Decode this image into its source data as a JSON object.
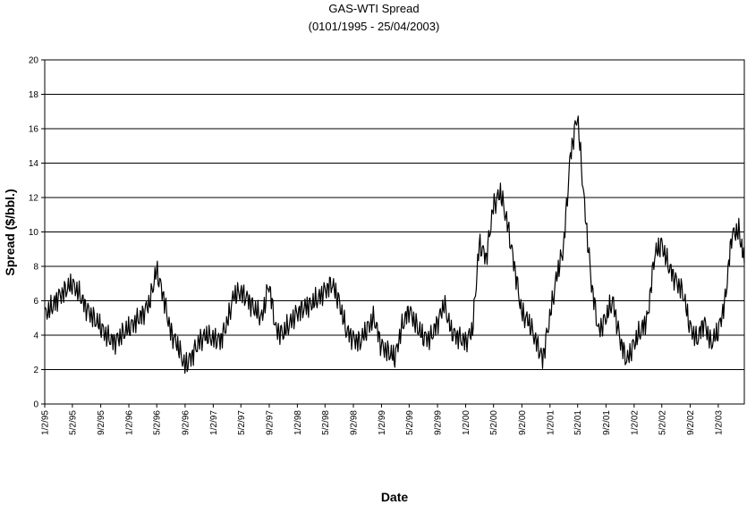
{
  "chart_data": {
    "type": "line",
    "title": "GAS-WTI Spread",
    "subtitle": "(0101/1995 - 25/04/2003)",
    "xlabel": "Date",
    "ylabel": "Spread ($/bbl.)",
    "ylim": [
      0,
      20
    ],
    "yticks": [
      "0",
      "2",
      "4",
      "6",
      "8",
      "10",
      "12",
      "14",
      "16",
      "18",
      "20"
    ],
    "xlim": [
      "1995-01-02",
      "2003-04-25"
    ],
    "xtick_labels": [
      "1/2/95",
      "5/2/95",
      "9/2/95",
      "1/2/96",
      "5/2/96",
      "9/2/96",
      "1/2/97",
      "5/2/97",
      "9/2/97",
      "1/2/98",
      "5/2/98",
      "9/2/98",
      "1/2/99",
      "5/2/99",
      "9/2/99",
      "1/2/00",
      "5/2/00",
      "9/2/00",
      "1/2/01",
      "5/2/01",
      "9/2/01",
      "1/2/02",
      "5/2/02",
      "9/2/02",
      "1/2/03"
    ],
    "xtick_dates": [
      "1995-01-02",
      "1995-05-02",
      "1995-09-02",
      "1996-01-02",
      "1996-05-02",
      "1996-09-02",
      "1997-01-02",
      "1997-05-02",
      "1997-09-02",
      "1998-01-02",
      "1998-05-02",
      "1998-09-02",
      "1999-01-02",
      "1999-05-02",
      "1999-09-02",
      "2000-01-02",
      "2000-05-02",
      "2000-09-02",
      "2001-01-02",
      "2001-05-02",
      "2001-09-02",
      "2002-01-02",
      "2002-05-02",
      "2002-09-02",
      "2003-01-02"
    ],
    "grid": "horizontal",
    "legend": "none",
    "line_color": "#000000",
    "series": [
      {
        "x": [
          "1995-01-02",
          "1995-02-01",
          "1995-03-01",
          "1995-04-01",
          "1995-05-01",
          "1995-06-01",
          "1995-07-01",
          "1995-08-01",
          "1995-09-01",
          "1995-10-01",
          "1995-11-01",
          "1995-12-01",
          "1996-01-01",
          "1996-02-01",
          "1996-03-01",
          "1996-04-01",
          "1996-05-01",
          "1996-06-01",
          "1996-07-01",
          "1996-08-01",
          "1996-09-01",
          "1996-10-01",
          "1996-11-01",
          "1996-12-01",
          "1997-01-01",
          "1997-02-01",
          "1997-03-01",
          "1997-04-01",
          "1997-05-01",
          "1997-06-01",
          "1997-07-01",
          "1997-08-01",
          "1997-09-01",
          "1997-10-01",
          "1997-11-01",
          "1997-12-01",
          "1998-01-01",
          "1998-02-01",
          "1998-03-01",
          "1998-04-01",
          "1998-05-01",
          "1998-06-01",
          "1998-07-01",
          "1998-08-01",
          "1998-09-01",
          "1998-10-01",
          "1998-11-01",
          "1998-12-01",
          "1999-01-01",
          "1999-02-01",
          "1999-03-01",
          "1999-04-01",
          "1999-05-01",
          "1999-06-01",
          "1999-07-01",
          "1999-08-01",
          "1999-09-01",
          "1999-10-01",
          "1999-11-01",
          "1999-12-01",
          "2000-01-01",
          "2000-02-01",
          "2000-03-01",
          "2000-04-01",
          "2000-05-01",
          "2000-06-01",
          "2000-07-01",
          "2000-08-01",
          "2000-09-01",
          "2000-10-01",
          "2000-11-01",
          "2000-12-01",
          "2001-01-01",
          "2001-02-01",
          "2001-03-01",
          "2001-04-01",
          "2001-05-01",
          "2001-06-01",
          "2001-07-01",
          "2001-08-01",
          "2001-09-01",
          "2001-10-01",
          "2001-11-01",
          "2001-12-01",
          "2002-01-01",
          "2002-02-01",
          "2002-03-01",
          "2002-04-01",
          "2002-05-01",
          "2002-06-01",
          "2002-07-01",
          "2002-08-01",
          "2002-09-01",
          "2002-10-01",
          "2002-11-01",
          "2002-12-01",
          "2003-01-01",
          "2003-02-01",
          "2003-03-01",
          "2003-04-01",
          "2003-04-25"
        ],
        "y": [
          5.2,
          5.6,
          6.2,
          6.6,
          7.0,
          6.4,
          5.6,
          5.0,
          4.5,
          3.9,
          3.6,
          4.0,
          4.4,
          4.8,
          5.2,
          5.9,
          7.8,
          6.2,
          4.2,
          3.4,
          2.2,
          2.8,
          3.6,
          4.0,
          3.8,
          3.7,
          4.6,
          6.3,
          6.5,
          6.1,
          5.5,
          5.0,
          7.0,
          4.3,
          4.1,
          4.7,
          5.3,
          5.6,
          5.8,
          6.1,
          6.6,
          7.0,
          6.0,
          4.3,
          3.8,
          3.6,
          4.4,
          5.0,
          3.4,
          3.0,
          2.7,
          4.5,
          5.5,
          4.6,
          3.9,
          3.8,
          4.7,
          5.8,
          4.2,
          3.9,
          3.6,
          4.3,
          9.3,
          8.5,
          11.5,
          12.3,
          10.5,
          8.0,
          5.3,
          4.8,
          3.7,
          2.6,
          5.0,
          7.5,
          9.0,
          14.5,
          16.8,
          11.5,
          7.0,
          4.2,
          5.0,
          6.0,
          3.8,
          2.5,
          3.5,
          4.3,
          5.0,
          8.7,
          9.3,
          8.0,
          7.2,
          6.5,
          4.5,
          3.7,
          4.8,
          3.5,
          4.2,
          6.0,
          9.8,
          10.1,
          8.2
        ]
      }
    ]
  }
}
